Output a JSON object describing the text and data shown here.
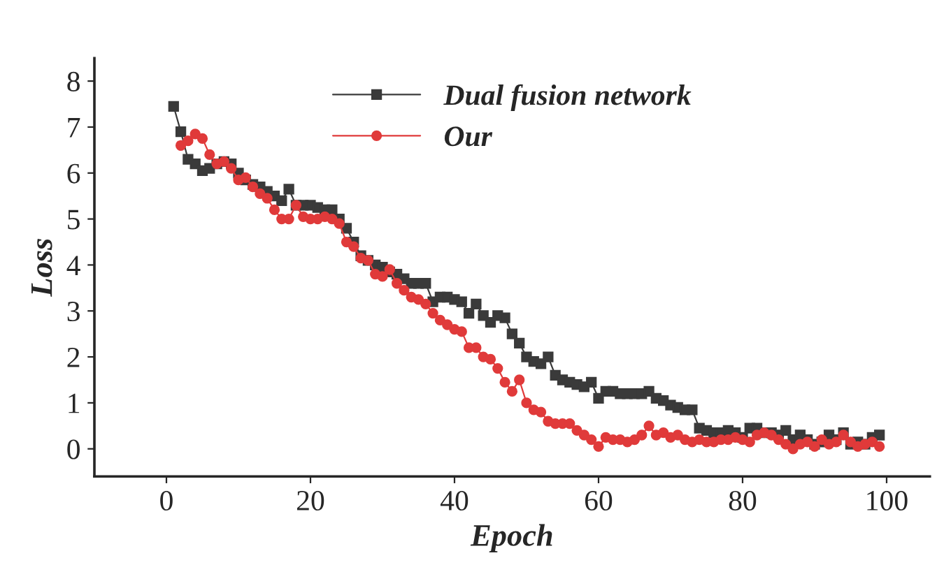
{
  "chart_data": {
    "type": "line",
    "xlabel": "Epoch",
    "ylabel": "Loss",
    "xlim": [
      -10,
      106
    ],
    "xticks": [
      0,
      20,
      40,
      60,
      80,
      100
    ],
    "ylim": [
      -0.6,
      8.5
    ],
    "yticks": [
      0,
      1,
      2,
      3,
      4,
      5,
      6,
      7,
      8
    ],
    "grid": false,
    "legend": "top",
    "series": [
      {
        "name": "Dual fusion network",
        "color": "#3a3a3a",
        "marker": "square",
        "x": [
          1,
          2,
          3,
          4,
          5,
          6,
          7,
          8,
          9,
          10,
          11,
          12,
          13,
          14,
          15,
          16,
          17,
          18,
          19,
          20,
          21,
          22,
          23,
          24,
          25,
          26,
          27,
          28,
          29,
          30,
          31,
          32,
          33,
          34,
          35,
          36,
          37,
          38,
          39,
          40,
          41,
          42,
          43,
          44,
          45,
          46,
          47,
          48,
          49,
          50,
          51,
          52,
          53,
          54,
          55,
          56,
          57,
          58,
          59,
          60,
          61,
          62,
          63,
          64,
          65,
          66,
          67,
          68,
          69,
          70,
          71,
          72,
          73,
          74,
          75,
          76,
          77,
          78,
          79,
          80,
          81,
          82,
          83,
          84,
          85,
          86,
          87,
          88,
          89,
          90,
          91,
          92,
          93,
          94,
          95,
          96,
          97,
          98,
          99
        ],
        "values": [
          7.45,
          6.9,
          6.3,
          6.2,
          6.05,
          6.1,
          6.2,
          6.25,
          6.2,
          6.0,
          5.85,
          5.75,
          5.7,
          5.6,
          5.5,
          5.4,
          5.65,
          5.3,
          5.3,
          5.3,
          5.25,
          5.2,
          5.2,
          5.0,
          4.8,
          4.5,
          4.2,
          4.1,
          4.0,
          3.95,
          3.85,
          3.8,
          3.7,
          3.6,
          3.6,
          3.6,
          3.2,
          3.3,
          3.3,
          3.25,
          3.2,
          2.95,
          3.15,
          2.9,
          2.75,
          2.9,
          2.85,
          2.5,
          2.3,
          2.0,
          1.9,
          1.85,
          2.0,
          1.6,
          1.5,
          1.45,
          1.4,
          1.35,
          1.45,
          1.1,
          1.25,
          1.25,
          1.2,
          1.2,
          1.2,
          1.2,
          1.25,
          1.1,
          1.05,
          0.95,
          0.9,
          0.85,
          0.85,
          0.45,
          0.4,
          0.35,
          0.35,
          0.4,
          0.35,
          0.25,
          0.45,
          0.45,
          0.35,
          0.35,
          0.3,
          0.4,
          0.2,
          0.3,
          0.2,
          0.1,
          0.15,
          0.3,
          0.2,
          0.35,
          0.1,
          0.15,
          0.1,
          0.25,
          0.3
        ]
      },
      {
        "name": "Our",
        "color": "#e03a3a",
        "marker": "circle",
        "x": [
          2,
          3,
          4,
          5,
          6,
          7,
          8,
          9,
          10,
          11,
          12,
          13,
          14,
          15,
          16,
          17,
          18,
          19,
          20,
          21,
          22,
          23,
          24,
          25,
          26,
          27,
          28,
          29,
          30,
          31,
          32,
          33,
          34,
          35,
          36,
          37,
          38,
          39,
          40,
          41,
          42,
          43,
          44,
          45,
          46,
          47,
          48,
          49,
          50,
          51,
          52,
          53,
          54,
          55,
          56,
          57,
          58,
          59,
          60,
          61,
          62,
          63,
          64,
          65,
          66,
          67,
          68,
          69,
          70,
          71,
          72,
          73,
          74,
          75,
          76,
          77,
          78,
          79,
          80,
          81,
          82,
          83,
          84,
          85,
          86,
          87,
          88,
          89,
          90,
          91,
          92,
          93,
          94,
          95,
          96,
          97,
          98,
          99
        ],
        "values": [
          6.6,
          6.7,
          6.85,
          6.75,
          6.4,
          6.2,
          6.25,
          6.1,
          5.85,
          5.9,
          5.7,
          5.55,
          5.45,
          5.2,
          5.0,
          5.0,
          5.3,
          5.05,
          5.0,
          5.0,
          5.05,
          5.0,
          4.9,
          4.5,
          4.4,
          4.15,
          4.1,
          3.8,
          3.75,
          3.9,
          3.6,
          3.45,
          3.3,
          3.25,
          3.15,
          2.95,
          2.8,
          2.7,
          2.6,
          2.55,
          2.2,
          2.2,
          2.0,
          1.95,
          1.75,
          1.45,
          1.25,
          1.5,
          1.0,
          0.85,
          0.8,
          0.6,
          0.55,
          0.55,
          0.55,
          0.4,
          0.3,
          0.2,
          0.05,
          0.25,
          0.2,
          0.2,
          0.15,
          0.2,
          0.3,
          0.5,
          0.3,
          0.35,
          0.25,
          0.3,
          0.2,
          0.15,
          0.2,
          0.15,
          0.15,
          0.2,
          0.2,
          0.25,
          0.2,
          0.15,
          0.3,
          0.35,
          0.3,
          0.2,
          0.1,
          0.0,
          0.1,
          0.15,
          0.05,
          0.2,
          0.1,
          0.15,
          0.3,
          0.15,
          0.05,
          0.1,
          0.15,
          0.05
        ]
      }
    ]
  }
}
